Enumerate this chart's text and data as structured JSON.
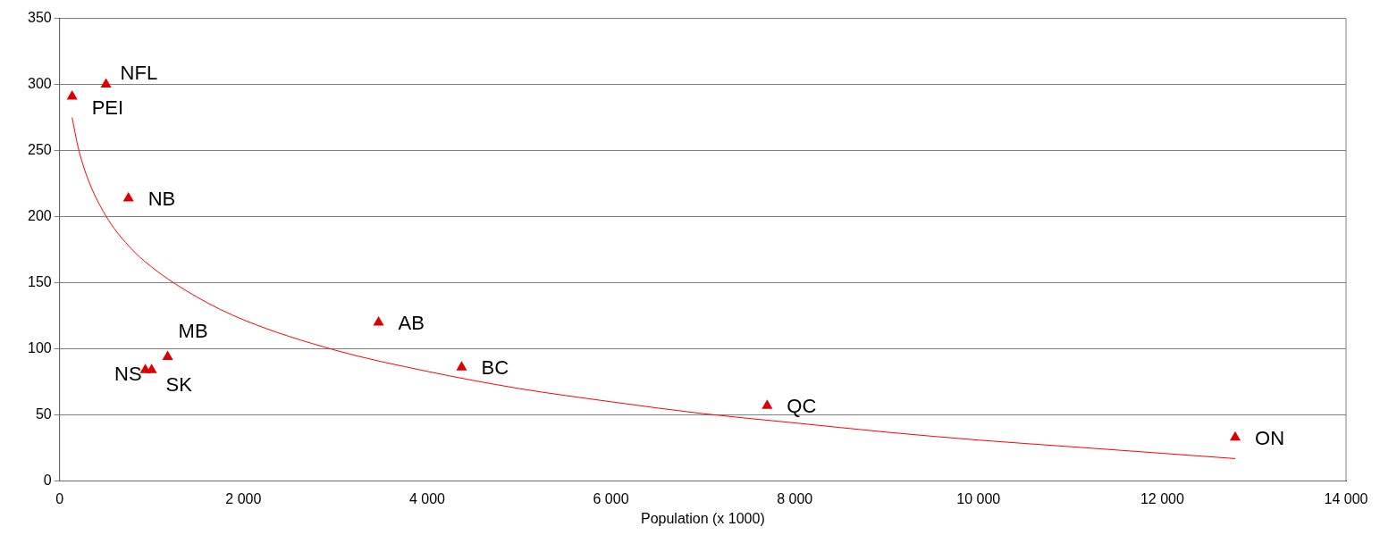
{
  "chart_data": {
    "type": "scatter",
    "xlabel": "Population (x 1000)",
    "xlim": [
      0,
      14000
    ],
    "xticks": [
      0,
      {
        "value": 2000,
        "label": "2 000"
      },
      {
        "value": 4000,
        "label": "4 000"
      },
      {
        "value": 6000,
        "label": "6 000"
      },
      {
        "value": 8000,
        "label": "8 000"
      },
      {
        "value": 10000,
        "label": "10 000"
      },
      {
        "value": 12000,
        "label": "12 000"
      },
      {
        "value": 14000,
        "label": "14 000"
      }
    ],
    "ylim": [
      0,
      350
    ],
    "yticks": [
      0,
      50,
      100,
      150,
      200,
      250,
      300,
      350
    ],
    "grid": "y",
    "legend": false,
    "series": [
      {
        "color": "#dd0000",
        "marker": "triangle",
        "x": [
          136,
          505,
          749,
          933,
          1001,
          1176,
          3471,
          4375,
          7700,
          12794
        ],
        "values": [
          291,
          300,
          214,
          84,
          84,
          94,
          120,
          86,
          57,
          33
        ]
      },
      {
        "type": "line",
        "color": "#ff0000",
        "marker": "none",
        "line_style": "solid",
        "x": [
          136,
          200,
          300,
          500,
          750,
          1000,
          1500,
          2000,
          3000,
          4000,
          5000,
          6000,
          7000,
          8000,
          9000,
          10000,
          11000,
          12000,
          12794
        ],
        "values": [
          275,
          253,
          230,
          201,
          178,
          162,
          139,
          122,
          99,
          83,
          70,
          60,
          51,
          44,
          37,
          31,
          26,
          21,
          17
        ]
      }
    ],
    "annotations": [
      {
        "text": "PEI",
        "x": 136,
        "y": 291
      },
      {
        "text": "NFL",
        "x": 505,
        "y": 300
      },
      {
        "text": "NB",
        "x": 749,
        "y": 214
      },
      {
        "text": "NS",
        "x": 933,
        "y": 84
      },
      {
        "text": "SK",
        "x": 1001,
        "y": 84
      },
      {
        "text": "MB",
        "x": 1176,
        "y": 94
      },
      {
        "text": "AB",
        "x": 3471,
        "y": 120
      },
      {
        "text": "BC",
        "x": 4375,
        "y": 86
      },
      {
        "text": "QC",
        "x": 7700,
        "y": 57
      },
      {
        "text": "ON",
        "x": 12794,
        "y": 33
      }
    ]
  }
}
